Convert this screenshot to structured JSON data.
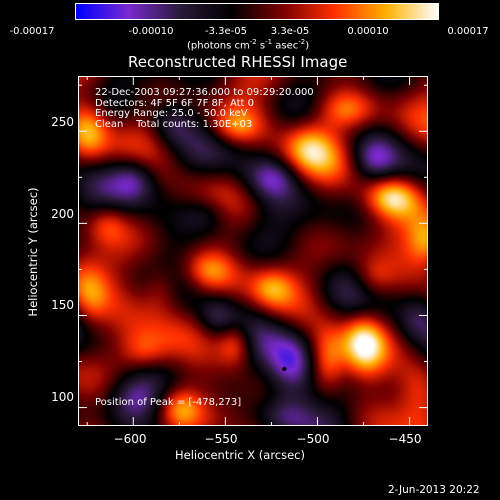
{
  "colorbar": {
    "ticks": [
      "-0.00017",
      "-0.00010",
      "-3.3e-05",
      "3.3e-05",
      "0.00010",
      "0.00017"
    ],
    "units_prefix": "(photons cm",
    "units_sup1": "-2",
    "units_mid": " s",
    "units_sup2": "-1",
    "units_mid2": " asec",
    "units_sup3": "-2",
    "units_suffix": ")",
    "colors": [
      "#0000ff",
      "#7a2ad0",
      "#2a1a3a",
      "#000000",
      "#7a0000",
      "#ff3000",
      "#ffb000",
      "#ffffff"
    ]
  },
  "chart_data": {
    "type": "heatmap",
    "title": "Reconstructed RHESSI Image",
    "xlabel": "Heliocentric X (arcsec)",
    "ylabel": "Heliocentric Y (arcsec)",
    "xlim": [
      -630,
      -440
    ],
    "ylim": [
      90,
      280
    ],
    "xticks": [
      -600,
      -550,
      -500,
      -450
    ],
    "xtick_labels": [
      "−600",
      "−550",
      "−500",
      "−450"
    ],
    "yticks": [
      100,
      150,
      200,
      250
    ],
    "ytick_labels": [
      "100",
      "150",
      "200",
      "250"
    ],
    "zlim": [
      -0.00017,
      0.00017
    ],
    "peak": [
      -478,
      273
    ],
    "marker": [
      -518,
      121
    ],
    "annotations": {
      "time": "22-Dec-2003 09:27:36.000 to 09:29:20.000",
      "detectors": "Detectors: 4F 5F 6F 7F 8F, Att 0",
      "energy": "Energy Range: 25.0 - 50.0 keV",
      "clean": "Clean    Total counts: 1.30E+03",
      "peak_text": "Position of Peak = [-478,273]"
    },
    "features": [
      {
        "x": -515,
        "y": 122,
        "amp": -1.7,
        "sx": 10,
        "sy": 13
      },
      {
        "x": -600,
        "y": 225,
        "amp": -1.2,
        "sx": 9,
        "sy": 9
      },
      {
        "x": -460,
        "y": 215,
        "amp": 1.6,
        "sx": 10,
        "sy": 8
      },
      {
        "x": -440,
        "y": 190,
        "amp": 1.4,
        "sx": 8,
        "sy": 10
      },
      {
        "x": -485,
        "y": 262,
        "amp": 1.3,
        "sx": 12,
        "sy": 8
      },
      {
        "x": -505,
        "y": 242,
        "amp": 1.1,
        "sx": 10,
        "sy": 10
      },
      {
        "x": -545,
        "y": 253,
        "amp": 1.0,
        "sx": 10,
        "sy": 7
      },
      {
        "x": -475,
        "y": 135,
        "amp": 1.5,
        "sx": 8,
        "sy": 12
      },
      {
        "x": -495,
        "y": 125,
        "amp": 1.2,
        "sx": 7,
        "sy": 12
      },
      {
        "x": -545,
        "y": 135,
        "amp": 1.3,
        "sx": 7,
        "sy": 9
      },
      {
        "x": -625,
        "y": 250,
        "amp": 1.3,
        "sx": 8,
        "sy": 12
      },
      {
        "x": -625,
        "y": 160,
        "amp": 1.2,
        "sx": 8,
        "sy": 14
      },
      {
        "x": -585,
        "y": 165,
        "amp": 1.0,
        "sx": 8,
        "sy": 10
      },
      {
        "x": -560,
        "y": 175,
        "amp": 1.1,
        "sx": 10,
        "sy": 8
      },
      {
        "x": -595,
        "y": 130,
        "amp": 1.0,
        "sx": 10,
        "sy": 8
      },
      {
        "x": -575,
        "y": 100,
        "amp": 1.0,
        "sx": 8,
        "sy": 8
      },
      {
        "x": -445,
        "y": 110,
        "amp": 1.2,
        "sx": 9,
        "sy": 14
      },
      {
        "x": -525,
        "y": 165,
        "amp": 0.9,
        "sx": 8,
        "sy": 8
      },
      {
        "x": -470,
        "y": 170,
        "amp": 0.8,
        "sx": 8,
        "sy": 8
      },
      {
        "x": -615,
        "y": 200,
        "amp": 0.8,
        "sx": 8,
        "sy": 8
      },
      {
        "x": -525,
        "y": 225,
        "amp": -0.9,
        "sx": 10,
        "sy": 8
      },
      {
        "x": -560,
        "y": 205,
        "amp": -0.9,
        "sx": 10,
        "sy": 8
      },
      {
        "x": -470,
        "y": 235,
        "amp": -0.8,
        "sx": 8,
        "sy": 8
      },
      {
        "x": -520,
        "y": 95,
        "amp": -0.8,
        "sx": 10,
        "sy": 8
      },
      {
        "x": -580,
        "y": 255,
        "amp": -0.8,
        "sx": 8,
        "sy": 8
      },
      {
        "x": -445,
        "y": 150,
        "amp": -0.7,
        "sx": 8,
        "sy": 10
      },
      {
        "x": -600,
        "y": 105,
        "amp": -0.7,
        "sx": 10,
        "sy": 8
      },
      {
        "x": -555,
        "y": 150,
        "amp": -0.8,
        "sx": 8,
        "sy": 8
      }
    ]
  },
  "footer": {
    "date": "2-Jun-2013 20:22"
  }
}
